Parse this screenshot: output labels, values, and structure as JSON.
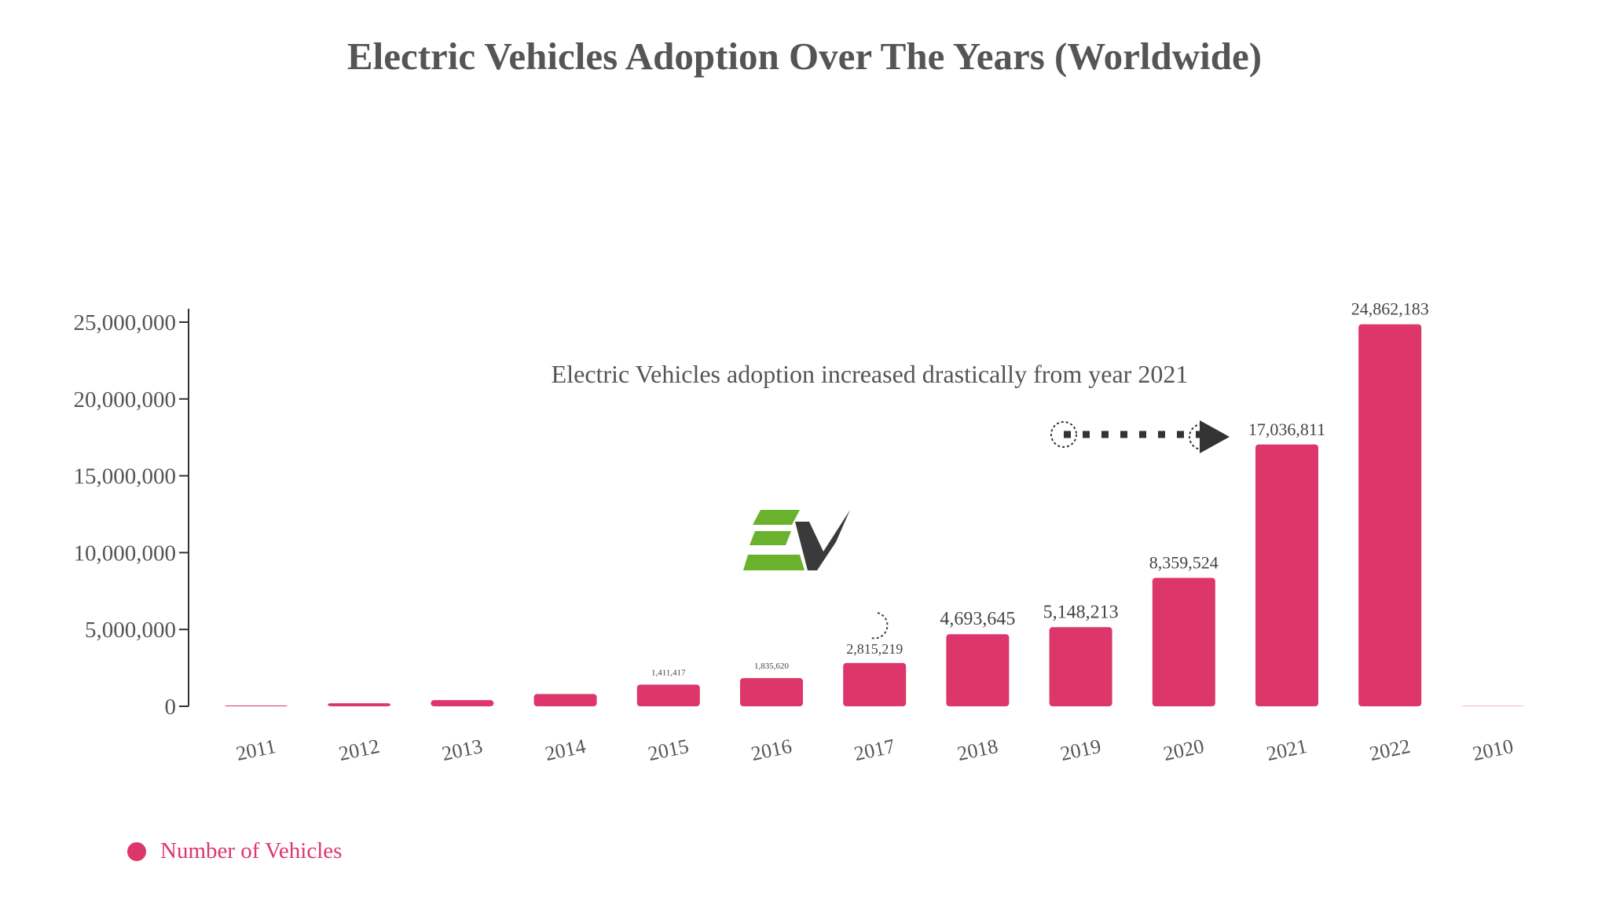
{
  "chart_data": {
    "type": "bar",
    "title": "Electric Vehicles Adoption Over The Years (Worldwide)",
    "xlabel": "",
    "ylabel": "",
    "categories": [
      "2011",
      "2012",
      "2013",
      "2014",
      "2015",
      "2016",
      "2017",
      "2018",
      "2019",
      "2020",
      "2021",
      "2022",
      "2010"
    ],
    "series": [
      {
        "name": "Number of Vehicles",
        "values": [
          50000,
          200000,
          400000,
          800000,
          1411417,
          1835620,
          2815219,
          4693645,
          5148213,
          8359524,
          17036811,
          24862183,
          0
        ]
      }
    ],
    "data_labels": [
      "",
      "",
      "",
      "",
      "1,411,417",
      "1,835,620",
      "2,815,219",
      "4,693,645",
      "5,148,213",
      "8,359,524",
      "17,036,811",
      "24,862,183",
      ""
    ],
    "ylim": [
      0,
      25000000
    ],
    "yticks": [
      0,
      5000000,
      10000000,
      15000000,
      20000000,
      25000000
    ],
    "ytick_labels": [
      "0",
      "5,000,000",
      "10,000,000",
      "15,000,000",
      "20,000,000",
      "25,000,000"
    ],
    "grid": false,
    "legend_position": "bottom-left",
    "annotation": "Electric Vehicles adoption increased drastically from year 2021",
    "colors": {
      "bar": "#dc366b",
      "axis": "#333333",
      "text": "#555555",
      "logo_green": "#6ab22d",
      "logo_dark": "#3a3a3a"
    }
  },
  "logo": {
    "icon": "ev-check-logo",
    "text": "EV"
  }
}
